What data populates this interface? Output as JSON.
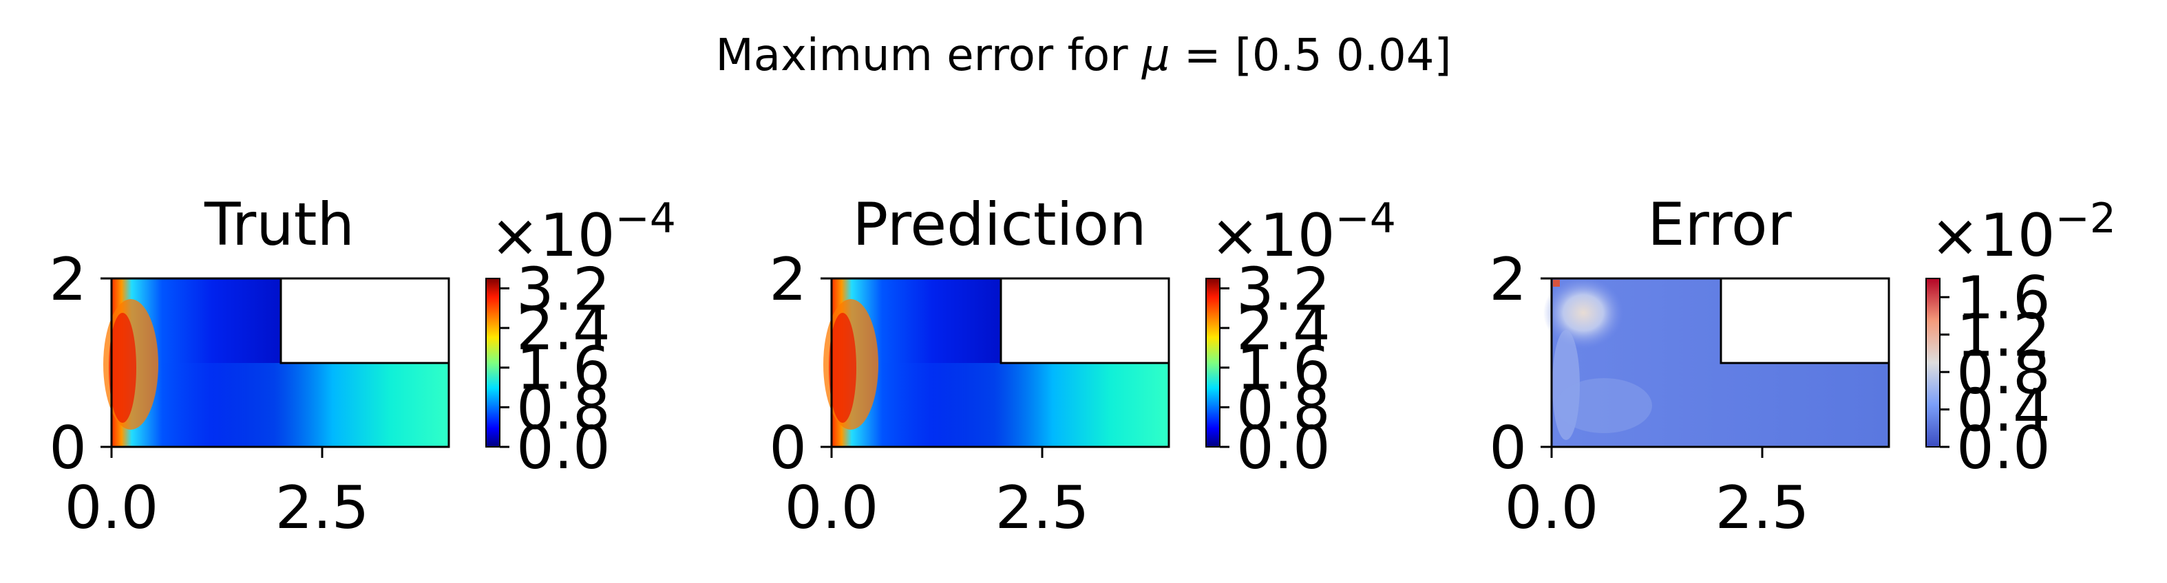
{
  "figure": {
    "suptitle_prefix": "Maximum error for ",
    "suptitle_symbol": "μ",
    "suptitle_suffix": " = [0.5  0.04]"
  },
  "chart_data": [
    {
      "type": "heatmap",
      "title": "Truth",
      "colormap": "jet",
      "xlim": [
        0,
        4
      ],
      "ylim": [
        0,
        2
      ],
      "x_ticks": [
        "0.0",
        "2.5"
      ],
      "y_ticks": [
        "0",
        "2"
      ],
      "domain": "L-shaped channel; region x 2–4, y 1–2 is empty",
      "colorbar": {
        "multiplier": "×10",
        "exponent": "−4",
        "range": [
          0,
          3.4
        ],
        "ticks": [
          "0.0",
          "0.8",
          "1.6",
          "2.4",
          "3.2"
        ]
      }
    },
    {
      "type": "heatmap",
      "title": "Prediction",
      "colormap": "jet",
      "xlim": [
        0,
        4
      ],
      "ylim": [
        0,
        2
      ],
      "x_ticks": [
        "0.0",
        "2.5"
      ],
      "y_ticks": [
        "0",
        "2"
      ],
      "domain": "L-shaped channel; region x 2–4, y 1–2 is empty",
      "colorbar": {
        "multiplier": "×10",
        "exponent": "−4",
        "range": [
          0,
          3.4
        ],
        "ticks": [
          "0.0",
          "0.8",
          "1.6",
          "2.4",
          "3.2"
        ]
      }
    },
    {
      "type": "heatmap",
      "title": "Error",
      "colormap": "coolwarm",
      "xlim": [
        0,
        4
      ],
      "ylim": [
        0,
        2
      ],
      "x_ticks": [
        "0.0",
        "2.5"
      ],
      "y_ticks": [
        "0",
        "2"
      ],
      "domain": "L-shaped channel; region x 2–4, y 1–2 is empty",
      "colorbar": {
        "multiplier": "×10",
        "exponent": "−2",
        "range": [
          0,
          1.8
        ],
        "ticks": [
          "0.0",
          "0.4",
          "0.8",
          "1.2",
          "1.6"
        ]
      }
    }
  ]
}
